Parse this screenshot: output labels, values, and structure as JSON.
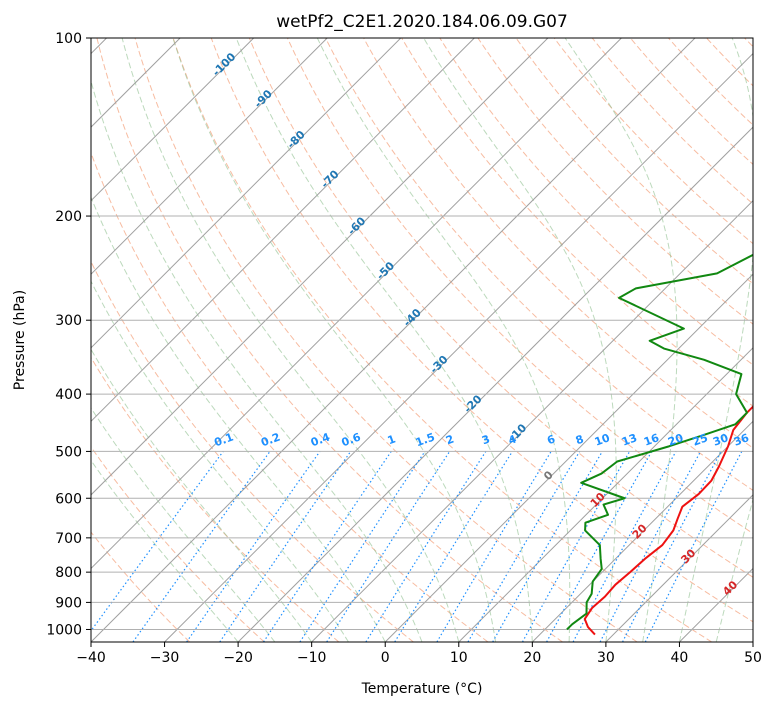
{
  "chart_data": {
    "type": "line",
    "title": "wetPf2_C2E1.2020.184.06.09.G07",
    "xlabel": "Temperature (°C)",
    "ylabel": "Pressure (hPa)",
    "xlim": [
      -40,
      50
    ],
    "ylim": [
      1050,
      100
    ],
    "x_ticks": [
      -40,
      -30,
      -20,
      -10,
      0,
      10,
      20,
      30,
      40,
      50
    ],
    "x_tick_labels": [
      "−40",
      "−30",
      "−20",
      "−10",
      "0",
      "10",
      "20",
      "30",
      "40",
      "50"
    ],
    "y_ticks": [
      100,
      200,
      300,
      400,
      500,
      600,
      700,
      800,
      900,
      1000
    ],
    "y_tick_labels": [
      "100",
      "200",
      "300",
      "400",
      "500",
      "600",
      "700",
      "800",
      "900",
      "1000"
    ],
    "grid": true,
    "series": [
      {
        "name": "Temperature",
        "color": "#ee1111",
        "points": [
          [
            27.5,
            1020
          ],
          [
            25.5,
            990
          ],
          [
            24,
            960
          ],
          [
            23.5,
            920
          ],
          [
            23.7,
            880
          ],
          [
            23.5,
            840
          ],
          [
            23.8,
            800
          ],
          [
            24,
            760
          ],
          [
            24.5,
            720
          ],
          [
            24,
            680
          ],
          [
            23,
            650
          ],
          [
            22,
            620
          ],
          [
            22.5,
            590
          ],
          [
            22.4,
            560
          ],
          [
            21.5,
            530
          ],
          [
            20,
            490
          ],
          [
            18.5,
            460
          ],
          [
            18,
            430
          ],
          [
            18,
            410
          ],
          [
            18.2,
            380
          ],
          [
            17.5,
            360
          ],
          [
            17,
            340
          ],
          [
            13,
            300
          ],
          [
            10,
            265
          ],
          [
            6,
            230
          ],
          [
            2.5,
            200
          ],
          [
            0.5,
            175
          ],
          [
            1.5,
            150
          ],
          [
            1.5,
            130
          ],
          [
            1,
            122
          ],
          [
            -0.5,
            112
          ],
          [
            -0.8,
            106
          ],
          [
            0,
            101
          ],
          [
            1.3,
            100
          ]
        ]
      },
      {
        "name": "Dewpoint",
        "color": "#118811",
        "points": [
          [
            23,
            1000
          ],
          [
            23,
            980
          ],
          [
            23.5,
            940
          ],
          [
            22,
            900
          ],
          [
            21.5,
            870
          ],
          [
            20,
            830
          ],
          [
            19.5,
            790
          ],
          [
            18,
            760
          ],
          [
            16,
            720
          ],
          [
            12,
            680
          ],
          [
            11,
            660
          ],
          [
            13,
            640
          ],
          [
            11,
            615
          ],
          [
            13,
            600
          ],
          [
            5,
            565
          ],
          [
            6.5,
            545
          ],
          [
            7,
            520
          ],
          [
            12,
            490
          ],
          [
            15,
            470
          ],
          [
            18,
            450
          ],
          [
            18,
            430
          ],
          [
            14,
            400
          ],
          [
            12,
            370
          ],
          [
            5,
            350
          ],
          [
            -2,
            335
          ],
          [
            -5,
            325
          ],
          [
            -2,
            310
          ],
          [
            -15,
            275
          ],
          [
            -14,
            265
          ],
          [
            -5,
            250
          ],
          [
            -0.8,
            220
          ],
          [
            -0.6,
            200
          ],
          [
            -3,
            175
          ],
          [
            -9,
            165
          ],
          [
            -7,
            145
          ],
          [
            -4,
            130
          ],
          [
            -0.8,
            115
          ],
          [
            -0.5,
            106
          ],
          [
            1.5,
            100
          ]
        ]
      }
    ],
    "isotherm_labels": [
      "-100",
      "-90",
      "-80",
      "-70",
      "-60",
      "-50",
      "-40",
      "-30",
      "-20",
      "-10"
    ],
    "isotherm_label_color": "#1f77b4",
    "moist_adiabat_labels": [
      "0",
      "10",
      "20",
      "30",
      "40"
    ],
    "moist_adiabat_label_colors": [
      "#777777",
      "#d62728",
      "#d62728",
      "#d62728",
      "#d62728"
    ],
    "mixing_ratio_labels": [
      "0.1",
      "0.2",
      "0.4",
      "0.6",
      "1",
      "1.5",
      "2",
      "3",
      "4",
      "6",
      "8",
      "10",
      "13",
      "16",
      "20",
      "25",
      "30",
      "36"
    ],
    "mixing_ratio_values": [
      0.1,
      0.2,
      0.4,
      0.6,
      1,
      1.5,
      2,
      3,
      4,
      6,
      8,
      10,
      13,
      16,
      20,
      25,
      30,
      36
    ],
    "mixing_ratio_label_color": "#1e90ff"
  }
}
